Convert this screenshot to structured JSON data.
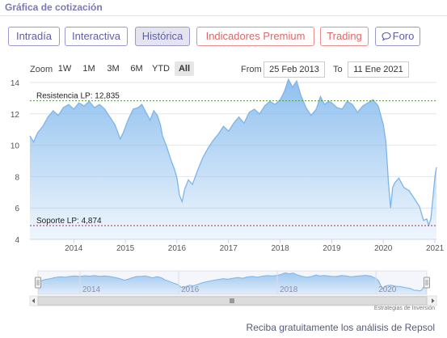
{
  "header": {
    "title": "Gráfica de cotización"
  },
  "tabs": [
    {
      "label": "Intradía",
      "active": false,
      "style": "normal"
    },
    {
      "label": "Interactiva",
      "active": false,
      "style": "normal"
    },
    {
      "label": "Histórica",
      "active": true,
      "style": "normal"
    },
    {
      "label": "Indicadores Premium",
      "active": false,
      "style": "red"
    },
    {
      "label": "Trading",
      "active": false,
      "style": "red"
    },
    {
      "label": "Foro",
      "active": false,
      "style": "normal",
      "icon": "chat-bubble-icon"
    }
  ],
  "zoom": {
    "label": "Zoom",
    "buttons": [
      "1W",
      "1M",
      "3M",
      "6M",
      "YTD",
      "All"
    ],
    "active": "All"
  },
  "range": {
    "from_label": "From",
    "from_value": "25 Feb 2013",
    "to_label": "To",
    "to_value": "11 Ene 2021"
  },
  "colors": {
    "accent": "#7a78b8",
    "line": "#7cb5ec",
    "resistance": "#4f9a3c",
    "support": "#b0303a"
  },
  "credit": "Estrategias de Inversión",
  "footer": "Reciba gratuitamente los análisis de Repsol",
  "chart_data": {
    "type": "area",
    "title": "",
    "xlabel": "",
    "ylabel": "",
    "xlim": [
      2013.15,
      2021.03
    ],
    "ylim": [
      4,
      14
    ],
    "yticks": [
      4,
      6,
      8,
      10,
      12,
      14
    ],
    "xticks": [
      2014,
      2015,
      2016,
      2017,
      2018,
      2019,
      2020,
      2021
    ],
    "navigator_ticks": [
      2014,
      2016,
      2018,
      2020
    ],
    "grid": true,
    "legend": "none",
    "series": [
      {
        "x": [
          2013.15,
          2013.22,
          2013.3,
          2013.4,
          2013.5,
          2013.6,
          2013.7,
          2013.8,
          2013.9,
          2014.0,
          2014.1,
          2014.2,
          2014.3,
          2014.4,
          2014.5,
          2014.6,
          2014.7,
          2014.8,
          2014.9,
          2014.96,
          2015.05,
          2015.15,
          2015.25,
          2015.32,
          2015.4,
          2015.48,
          2015.55,
          2015.62,
          2015.68,
          2015.72,
          2015.8,
          2015.9,
          2015.95,
          2016.0,
          2016.05,
          2016.1,
          2016.15,
          2016.22,
          2016.3,
          2016.4,
          2016.5,
          2016.6,
          2016.7,
          2016.8,
          2016.9,
          2017.0,
          2017.1,
          2017.2,
          2017.3,
          2017.4,
          2017.5,
          2017.6,
          2017.7,
          2017.8,
          2017.9,
          2018.0,
          2018.08,
          2018.16,
          2018.24,
          2018.32,
          2018.4,
          2018.5,
          2018.6,
          2018.7,
          2018.78,
          2018.86,
          2018.94,
          2019.0,
          2019.1,
          2019.2,
          2019.3,
          2019.4,
          2019.5,
          2019.6,
          2019.7,
          2019.8,
          2019.9,
          2020.0,
          2020.05,
          2020.1,
          2020.14,
          2020.18,
          2020.22,
          2020.3,
          2020.4,
          2020.5,
          2020.6,
          2020.7,
          2020.78,
          2020.84,
          2020.88,
          2020.92,
          2020.96,
          2021.0,
          2021.03
        ],
        "y": [
          10.6,
          10.2,
          10.8,
          11.2,
          11.8,
          12.2,
          11.9,
          12.4,
          12.6,
          12.3,
          12.7,
          12.5,
          12.8,
          12.4,
          12.6,
          12.3,
          11.8,
          11.3,
          10.4,
          10.8,
          11.6,
          12.3,
          12.4,
          12.6,
          12.1,
          11.6,
          12.2,
          11.9,
          11.3,
          10.6,
          9.9,
          8.9,
          8.5,
          7.9,
          6.8,
          6.4,
          7.2,
          7.8,
          7.5,
          8.4,
          9.2,
          9.8,
          10.3,
          10.7,
          11.2,
          10.9,
          11.4,
          11.8,
          11.4,
          12.1,
          12.3,
          12.0,
          12.5,
          12.8,
          12.6,
          12.9,
          13.4,
          14.2,
          13.7,
          14.1,
          13.2,
          12.4,
          11.9,
          12.3,
          13.1,
          12.6,
          12.8,
          12.7,
          12.4,
          12.3,
          12.8,
          12.6,
          12.1,
          12.5,
          12.7,
          12.9,
          12.5,
          11.3,
          10.2,
          7.6,
          6.0,
          7.3,
          7.6,
          7.9,
          7.3,
          7.1,
          6.6,
          6.1,
          5.2,
          5.3,
          4.9,
          5.3,
          6.6,
          8.0,
          8.6
        ]
      }
    ],
    "annotations": [
      {
        "label": "Resistencia LP: 12,835",
        "y": 12.835,
        "type": "resistance"
      },
      {
        "label": "Soporte LP: 4,874",
        "y": 4.874,
        "type": "support"
      }
    ]
  }
}
